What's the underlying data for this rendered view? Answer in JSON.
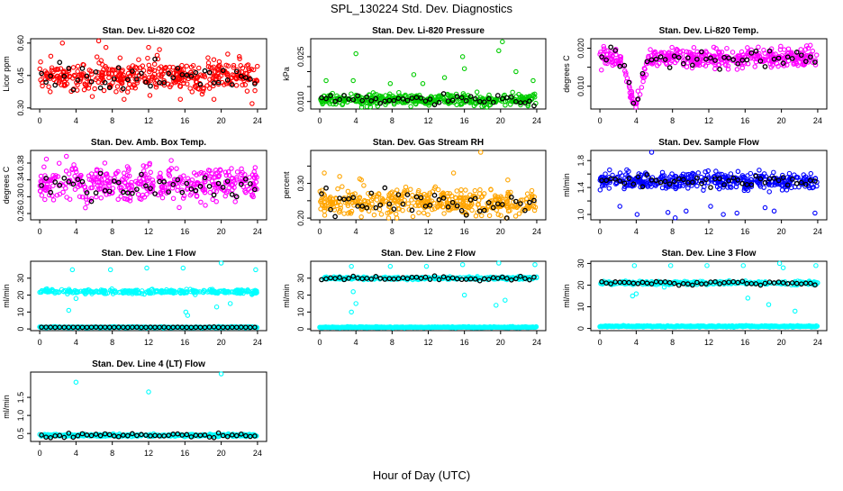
{
  "figure": {
    "title": "SPL_130224  Std. Dev. Diagnostics",
    "xlabel": "Hour of Day (UTC)"
  },
  "chart_data": [
    {
      "type": "scatter",
      "title": "Stan. Dev. Li-820 CO2",
      "ylabel": "Licor ppm",
      "xlim": [
        -1,
        25
      ],
      "ylim": [
        0.295,
        0.62
      ],
      "xticks": [
        0,
        4,
        8,
        12,
        16,
        20,
        24
      ],
      "yticks": [
        0.3,
        0.45,
        0.6
      ],
      "ytick_labels": [
        "0.30",
        "0.45",
        "0.60"
      ],
      "color": "#ff0000",
      "band": {
        "center": 0.445,
        "spread": 0.07
      },
      "black_center": 0.44,
      "outliers": [
        [
          2.5,
          0.6
        ],
        [
          6.5,
          0.61
        ],
        [
          7.3,
          0.58
        ],
        [
          12,
          0.58
        ],
        [
          13.2,
          0.57
        ],
        [
          15.5,
          0.34
        ],
        [
          9.3,
          0.34
        ],
        [
          19.2,
          0.34
        ],
        [
          23.4,
          0.32
        ]
      ]
    },
    {
      "type": "scatter",
      "title": "Stan. Dev. Li-820 Pressure",
      "ylabel": "kPa",
      "xlim": [
        -1,
        25
      ],
      "ylim": [
        0.0075,
        0.031
      ],
      "xticks": [
        0,
        4,
        8,
        12,
        16,
        20,
        24
      ],
      "yticks": [
        0.01,
        0.015,
        0.02,
        0.025
      ],
      "ytick_labels": [
        "0.010",
        "",
        "",
        "0.025"
      ],
      "color": "#00cc00",
      "band": {
        "center": 0.0105,
        "spread": 0.0018
      },
      "black_center": 0.0105,
      "outliers": [
        [
          0.7,
          0.017
        ],
        [
          4,
          0.026
        ],
        [
          3.7,
          0.017
        ],
        [
          7.8,
          0.016
        ],
        [
          10.4,
          0.019
        ],
        [
          11.4,
          0.016
        ],
        [
          13.8,
          0.018
        ],
        [
          15.8,
          0.025
        ],
        [
          16,
          0.021
        ],
        [
          19.8,
          0.027
        ],
        [
          20.2,
          0.03
        ],
        [
          21.7,
          0.02
        ],
        [
          23.6,
          0.017
        ]
      ]
    },
    {
      "type": "scatter",
      "title": "Stan. Dev. Li-820 Temp.",
      "ylabel": "degrees C",
      "xlim": [
        -1,
        25
      ],
      "ylim": [
        0.004,
        0.0225
      ],
      "xticks": [
        0,
        4,
        8,
        12,
        16,
        20,
        24
      ],
      "yticks": [
        0.01,
        0.015,
        0.02
      ],
      "ytick_labels": [
        "0.010",
        "",
        "0.020"
      ],
      "color": "#ff00ff",
      "band": {
        "center": 0.0175,
        "spread": 0.0025
      },
      "black_center": 0.0175,
      "dip": {
        "center": 3.9,
        "width": 0.9,
        "depth": 0.012
      }
    },
    {
      "type": "scatter",
      "title": "Stan. Dev. Amb. Box Temp.",
      "ylabel": "degrees C",
      "xlim": [
        -1,
        25
      ],
      "ylim": [
        0.245,
        0.41
      ],
      "xticks": [
        0,
        4,
        8,
        12,
        16,
        20,
        24
      ],
      "yticks": [
        0.26,
        0.3,
        0.34,
        0.38
      ],
      "ytick_labels": [
        "0.26",
        "0.30",
        "0.34",
        "0.38"
      ],
      "color": "#ff00ff",
      "band": {
        "center": 0.33,
        "spread": 0.04
      },
      "black_center": 0.325,
      "outliers": []
    },
    {
      "type": "scatter",
      "title": "Stan. Dev. Gas Stream RH",
      "ylabel": "percent",
      "xlim": [
        -1,
        25
      ],
      "ylim": [
        0.195,
        0.395
      ],
      "xticks": [
        0,
        4,
        8,
        12,
        16,
        20,
        24
      ],
      "yticks": [
        0.2,
        0.25,
        0.3,
        0.35
      ],
      "ytick_labels": [
        "0.20",
        "",
        "0.30",
        ""
      ],
      "color": "#ffa500",
      "band": {
        "center": 0.245,
        "spread": 0.038
      },
      "black_center": 0.245,
      "outliers": [
        [
          0.5,
          0.33
        ],
        [
          2.2,
          0.32
        ],
        [
          4.6,
          0.31
        ],
        [
          17.8,
          0.39
        ],
        [
          14.8,
          0.33
        ],
        [
          20.8,
          0.31
        ]
      ]
    },
    {
      "type": "scatter",
      "title": "Stan. Dev. Sample Flow",
      "ylabel": "ml/min",
      "xlim": [
        -1,
        25
      ],
      "ylim": [
        0.92,
        1.95
      ],
      "xticks": [
        0,
        4,
        8,
        12,
        16,
        20,
        24
      ],
      "yticks": [
        1.0,
        1.2,
        1.4,
        1.6,
        1.8
      ],
      "ytick_labels": [
        "1.0",
        "",
        "1.4",
        "",
        "1.8"
      ],
      "color": "#0000ff",
      "band": {
        "center": 1.5,
        "spread": 0.12
      },
      "black_center": 1.48,
      "outliers": [
        [
          5.7,
          1.93
        ],
        [
          8.3,
          0.95
        ],
        [
          9.5,
          1.05
        ],
        [
          7.5,
          1.03
        ],
        [
          12.2,
          1.12
        ],
        [
          15.1,
          1.02
        ],
        [
          19.2,
          1.05
        ],
        [
          23.7,
          1.02
        ],
        [
          2.2,
          1.12
        ],
        [
          4.1,
          1.0
        ],
        [
          13.6,
          1.0
        ],
        [
          18.2,
          1.1
        ]
      ]
    },
    {
      "type": "scatter",
      "title": "Stan. Dev. Line 1 Flow",
      "ylabel": "ml/min",
      "xlim": [
        -1,
        25
      ],
      "ylim": [
        -1,
        40
      ],
      "xticks": [
        0,
        4,
        8,
        12,
        16,
        20,
        24
      ],
      "yticks": [
        0,
        10,
        20,
        30
      ],
      "ytick_labels": [
        "0",
        "10",
        "20",
        "30"
      ],
      "color": "#00ffff",
      "band": {
        "center": 22,
        "spread": 1.2
      },
      "black_center": 1,
      "black_spread": 0.05,
      "baseline": 1,
      "outliers": [
        [
          3.6,
          35
        ],
        [
          7.8,
          35
        ],
        [
          11.8,
          36
        ],
        [
          15.8,
          36
        ],
        [
          20,
          39
        ],
        [
          23.8,
          35
        ],
        [
          3.2,
          11
        ],
        [
          16.3,
          8
        ],
        [
          19.5,
          13
        ],
        [
          21,
          15
        ],
        [
          4,
          18
        ],
        [
          16.1,
          10
        ]
      ]
    },
    {
      "type": "scatter",
      "title": "Stan. Dev. Line 2 Flow",
      "ylabel": "ml/min",
      "xlim": [
        -1,
        25
      ],
      "ylim": [
        -1,
        40
      ],
      "xticks": [
        0,
        4,
        8,
        12,
        16,
        20,
        24
      ],
      "yticks": [
        0,
        10,
        20,
        30
      ],
      "ytick_labels": [
        "0",
        "10",
        "20",
        "30"
      ],
      "color": "#00ffff",
      "band": {
        "center": 30,
        "spread": 0.8
      },
      "black_center": 30,
      "black_spread": 0.6,
      "baseline": 1,
      "outliers": [
        [
          3.5,
          37
        ],
        [
          7.8,
          37
        ],
        [
          11.8,
          37
        ],
        [
          15.8,
          38
        ],
        [
          19.8,
          40
        ],
        [
          23.8,
          38
        ],
        [
          3.5,
          10
        ],
        [
          3.7,
          22
        ],
        [
          16,
          20
        ],
        [
          19.5,
          14
        ],
        [
          20.5,
          17
        ],
        [
          4,
          15
        ]
      ]
    },
    {
      "type": "scatter",
      "title": "Stan. Dev. Line 3 Flow",
      "ylabel": "ml/min",
      "xlim": [
        -1,
        25
      ],
      "ylim": [
        -1,
        31
      ],
      "xticks": [
        0,
        4,
        8,
        12,
        16,
        20,
        24
      ],
      "yticks": [
        0,
        10,
        20,
        30
      ],
      "ytick_labels": [
        "0",
        "10",
        "20",
        "30"
      ],
      "color": "#00ffff",
      "band": {
        "center": 21,
        "spread": 0.8
      },
      "black_center": 21,
      "black_spread": 0.5,
      "baseline": 1,
      "outliers": [
        [
          3.8,
          29
        ],
        [
          7.8,
          29
        ],
        [
          11.8,
          29
        ],
        [
          15.8,
          29
        ],
        [
          19.8,
          30
        ],
        [
          20.2,
          28
        ],
        [
          23.8,
          29
        ],
        [
          3.6,
          15
        ],
        [
          16.3,
          14
        ],
        [
          18.6,
          11
        ],
        [
          21.5,
          8
        ],
        [
          4,
          16
        ]
      ]
    },
    {
      "type": "scatter",
      "title": "Stan. Dev. Line 4 (LT) Flow",
      "ylabel": "ml/min",
      "xlim": [
        -1,
        25
      ],
      "ylim": [
        0.28,
        2.2
      ],
      "xticks": [
        0,
        4,
        8,
        12,
        16,
        20,
        24
      ],
      "yticks": [
        0.5,
        1.0,
        1.5
      ],
      "ytick_labels": [
        "0.5",
        "1.0",
        "1.5"
      ],
      "color": "#00ffff",
      "band": {
        "center": 0.45,
        "spread": 0.03
      },
      "black_center": 0.45,
      "black_spread": 0.03,
      "outliers": [
        [
          4,
          1.92
        ],
        [
          12,
          1.65
        ],
        [
          20,
          2.15
        ]
      ]
    }
  ]
}
